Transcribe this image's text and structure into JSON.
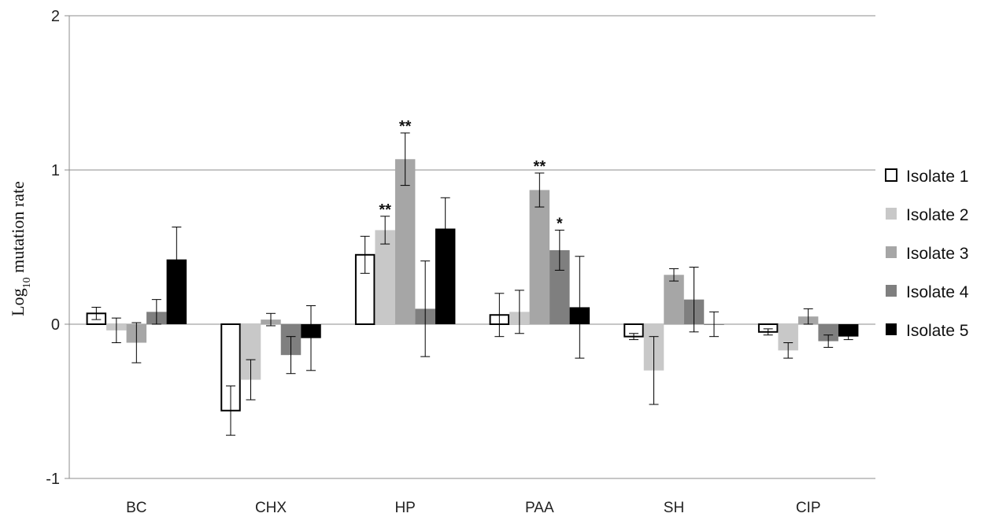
{
  "chart_data": {
    "type": "bar",
    "ylabel_main": "Log",
    "ylabel_sub": "10",
    "ylabel_rest": " mutation rate",
    "ylim": [
      -1,
      2
    ],
    "yticks": [
      -1,
      0,
      1,
      2
    ],
    "ytick_labels": [
      "-1",
      "0",
      "1",
      "2"
    ],
    "grid": true,
    "legend_position": "right",
    "categories": [
      "BC",
      "CHX",
      "HP",
      "PAA",
      "SH",
      "CIP"
    ],
    "series": [
      {
        "name": "Isolate 1",
        "color": "#ffffff",
        "stroke": "#000000",
        "values": [
          0.07,
          -0.56,
          0.45,
          0.06,
          -0.08,
          -0.05
        ],
        "errors": [
          0.04,
          0.16,
          0.12,
          0.14,
          0.02,
          0.02
        ],
        "stars": [
          "",
          "",
          "",
          "",
          "",
          ""
        ]
      },
      {
        "name": "Isolate 2",
        "color": "#c8c8c8",
        "stroke": "#c8c8c8",
        "values": [
          -0.04,
          -0.36,
          0.61,
          0.08,
          -0.3,
          -0.17
        ],
        "errors": [
          0.08,
          0.13,
          0.09,
          0.14,
          0.22,
          0.05
        ],
        "stars": [
          "",
          "",
          "**",
          "",
          "",
          ""
        ]
      },
      {
        "name": "Isolate 3",
        "color": "#a6a6a6",
        "stroke": "#a6a6a6",
        "values": [
          -0.12,
          0.03,
          1.07,
          0.87,
          0.32,
          0.05
        ],
        "errors": [
          0.13,
          0.04,
          0.17,
          0.11,
          0.04,
          0.05
        ],
        "stars": [
          "",
          "",
          "**",
          "**",
          "",
          ""
        ]
      },
      {
        "name": "Isolate 4",
        "color": "#7f7f7f",
        "stroke": "#7f7f7f",
        "values": [
          0.08,
          -0.2,
          0.1,
          0.48,
          0.16,
          -0.11
        ],
        "errors": [
          0.08,
          0.12,
          0.31,
          0.13,
          0.21,
          0.04
        ],
        "stars": [
          "",
          "",
          "",
          "*",
          "",
          ""
        ]
      },
      {
        "name": "Isolate 5",
        "color": "#000000",
        "stroke": "#000000",
        "values": [
          0.42,
          -0.09,
          0.62,
          0.11,
          0.0,
          -0.08
        ],
        "errors": [
          0.21,
          0.21,
          0.2,
          0.33,
          0.08,
          0.02
        ],
        "stars": [
          "",
          "",
          "",
          "",
          "",
          ""
        ]
      }
    ]
  }
}
